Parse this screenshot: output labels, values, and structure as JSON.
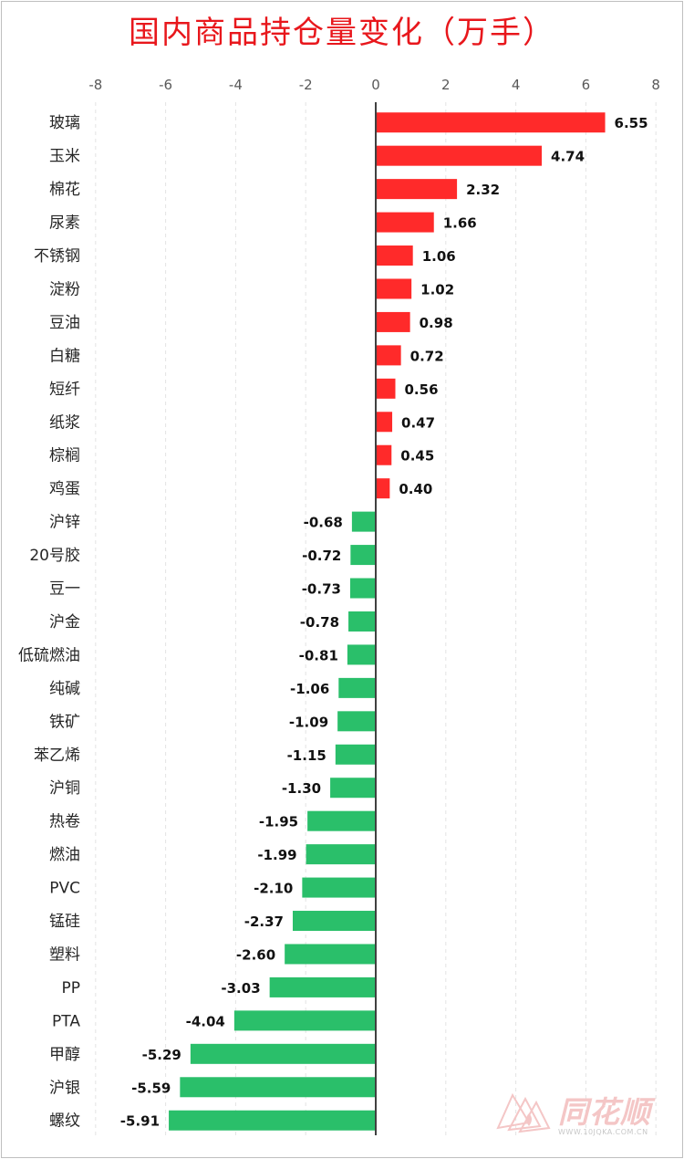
{
  "chart_data": {
    "type": "bar",
    "orientation": "horizontal",
    "title": "国内商品持仓量变化（万手）",
    "xlim": [
      -8,
      8
    ],
    "xticks": [
      -8,
      -6,
      -4,
      -2,
      0,
      2,
      4,
      6,
      8
    ],
    "x_axis_position": "top",
    "grid": "vertical dashed",
    "positive_color": "#ff2a2a",
    "negative_color": "#2abf6a",
    "categories": [
      "玻璃",
      "玉米",
      "棉花",
      "尿素",
      "不锈钢",
      "淀粉",
      "豆油",
      "白糖",
      "短纤",
      "纸浆",
      "棕榈",
      "鸡蛋",
      "沪锌",
      "20号胶",
      "豆一",
      "沪金",
      "低硫燃油",
      "纯碱",
      "铁矿",
      "苯乙烯",
      "沪铜",
      "热卷",
      "燃油",
      "PVC",
      "锰硅",
      "塑料",
      "PP",
      "PTA",
      "甲醇",
      "沪银",
      "螺纹"
    ],
    "values": [
      6.55,
      4.74,
      2.32,
      1.66,
      1.06,
      1.02,
      0.98,
      0.72,
      0.56,
      0.47,
      0.45,
      0.4,
      -0.68,
      -0.72,
      -0.73,
      -0.78,
      -0.81,
      -1.06,
      -1.09,
      -1.15,
      -1.3,
      -1.95,
      -1.99,
      -2.1,
      -2.37,
      -2.6,
      -3.03,
      -4.04,
      -5.29,
      -5.59,
      -5.91
    ],
    "value_labels": [
      "6.55",
      "4.74",
      "2.32",
      "1.66",
      "1.06",
      "1.02",
      "0.98",
      "0.72",
      "0.56",
      "0.47",
      "0.45",
      "0.40",
      "-0.68",
      "-0.72",
      "-0.73",
      "-0.78",
      "-0.81",
      "-1.06",
      "-1.09",
      "-1.15",
      "-1.30",
      "-1.95",
      "-1.99",
      "-2.10",
      "-2.37",
      "-2.60",
      "-3.03",
      "-4.04",
      "-5.29",
      "-5.59",
      "-5.91"
    ]
  },
  "watermark": {
    "brand": "同花顺",
    "url": "WWW.10JQKA.COM.CN",
    "color": "#f4c6c6"
  }
}
